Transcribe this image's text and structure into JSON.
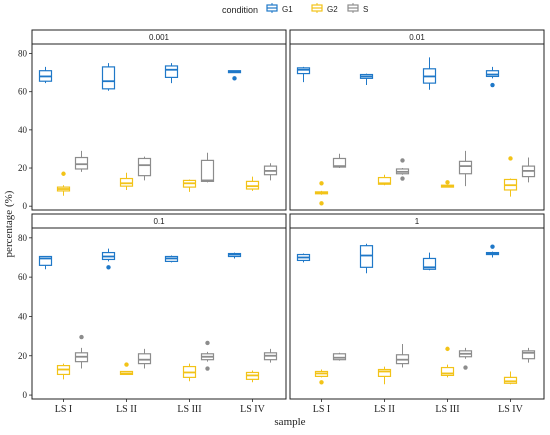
{
  "chart_data": {
    "type": "boxplot",
    "legend": {
      "title": "condition",
      "placement": "top",
      "entries": [
        {
          "label": "G1",
          "color": "#1f78c8"
        },
        {
          "label": "G2",
          "color": "#f2c318"
        },
        {
          "label": "S",
          "color": "#8c8c8c"
        }
      ]
    },
    "xlabel": "sample",
    "ylabel": "percentage (%)",
    "ylim": [
      -2,
      85
    ],
    "yticks": [
      0,
      20,
      40,
      60,
      80
    ],
    "categories": [
      "LS I",
      "LS II",
      "LS III",
      "LS IV"
    ],
    "facets": [
      {
        "label": "0.001",
        "boxes": [
          {
            "sample": "LS I",
            "condition": "G1",
            "q1": 65.5,
            "median": 68,
            "q3": 71,
            "min": 64.5,
            "max": 73,
            "outliers": []
          },
          {
            "sample": "LS I",
            "condition": "G2",
            "q1": 8,
            "median": 9,
            "q3": 10,
            "min": 5.5,
            "max": 11,
            "outliers": [
              17
            ]
          },
          {
            "sample": "LS I",
            "condition": "S",
            "q1": 19.5,
            "median": 22,
            "q3": 25.5,
            "min": 18,
            "max": 29,
            "outliers": []
          },
          {
            "sample": "LS II",
            "condition": "G1",
            "q1": 61.5,
            "median": 65.5,
            "q3": 73,
            "min": 60.5,
            "max": 75,
            "outliers": []
          },
          {
            "sample": "LS II",
            "condition": "G2",
            "q1": 10.5,
            "median": 12,
            "q3": 14.5,
            "min": 8.5,
            "max": 17.5,
            "outliers": []
          },
          {
            "sample": "LS II",
            "condition": "S",
            "q1": 16,
            "median": 21.5,
            "q3": 25,
            "min": 13.5,
            "max": 26,
            "outliers": []
          },
          {
            "sample": "LS III",
            "condition": "G1",
            "q1": 67.5,
            "median": 71.5,
            "q3": 73.5,
            "min": 64.5,
            "max": 75,
            "outliers": []
          },
          {
            "sample": "LS III",
            "condition": "G2",
            "q1": 10,
            "median": 12,
            "q3": 13.5,
            "min": 7.5,
            "max": 14,
            "outliers": []
          },
          {
            "sample": "LS III",
            "condition": "S",
            "q1": 13,
            "median": 13.5,
            "q3": 24,
            "min": 12.5,
            "max": 28,
            "outliers": []
          },
          {
            "sample": "LS IV",
            "condition": "G1",
            "q1": 70,
            "median": 70.5,
            "q3": 71,
            "min": 70,
            "max": 71,
            "outliers": [
              67
            ]
          },
          {
            "sample": "LS IV",
            "condition": "G2",
            "q1": 9,
            "median": 10.5,
            "q3": 13,
            "min": 8,
            "max": 15.5,
            "outliers": []
          },
          {
            "sample": "LS IV",
            "condition": "S",
            "q1": 16.5,
            "median": 18.5,
            "q3": 21,
            "min": 13.5,
            "max": 22.5,
            "outliers": []
          }
        ]
      },
      {
        "label": "0.01",
        "boxes": [
          {
            "sample": "LS I",
            "condition": "G1",
            "q1": 69.5,
            "median": 71.5,
            "q3": 72.5,
            "min": 65,
            "max": 73,
            "outliers": []
          },
          {
            "sample": "LS I",
            "condition": "G2",
            "q1": 6.5,
            "median": 7,
            "q3": 7.5,
            "min": 6,
            "max": 8,
            "outliers": [
              12,
              1.5
            ]
          },
          {
            "sample": "LS I",
            "condition": "S",
            "q1": 20.5,
            "median": 21,
            "q3": 25,
            "min": 20,
            "max": 27.5,
            "outliers": []
          },
          {
            "sample": "LS II",
            "condition": "G1",
            "q1": 67,
            "median": 68,
            "q3": 69,
            "min": 63.5,
            "max": 69.5,
            "outliers": []
          },
          {
            "sample": "LS II",
            "condition": "G2",
            "q1": 11.5,
            "median": 12,
            "q3": 15,
            "min": 11,
            "max": 16.5,
            "outliers": []
          },
          {
            "sample": "LS II",
            "condition": "S",
            "q1": 17,
            "median": 18,
            "q3": 19.5,
            "min": 16.5,
            "max": 20,
            "outliers": [
              24,
              14.5
            ]
          },
          {
            "sample": "LS III",
            "condition": "G1",
            "q1": 64.5,
            "median": 68,
            "q3": 72,
            "min": 61,
            "max": 78,
            "outliers": []
          },
          {
            "sample": "LS III",
            "condition": "G2",
            "q1": 10,
            "median": 10.5,
            "q3": 11,
            "min": 10,
            "max": 11,
            "outliers": [
              12.5
            ]
          },
          {
            "sample": "LS III",
            "condition": "S",
            "q1": 17,
            "median": 21,
            "q3": 23.5,
            "min": 10.5,
            "max": 29,
            "outliers": []
          },
          {
            "sample": "LS IV",
            "condition": "G1",
            "q1": 68,
            "median": 69,
            "q3": 71,
            "min": 67,
            "max": 73,
            "outliers": [
              63.5
            ]
          },
          {
            "sample": "LS IV",
            "condition": "G2",
            "q1": 8.5,
            "median": 11,
            "q3": 14,
            "min": 5,
            "max": 14.5,
            "outliers": [
              25
            ]
          },
          {
            "sample": "LS IV",
            "condition": "S",
            "q1": 15.5,
            "median": 18.5,
            "q3": 21,
            "min": 12.5,
            "max": 25.5,
            "outliers": []
          }
        ]
      },
      {
        "label": "0.1",
        "boxes": [
          {
            "sample": "LS I",
            "condition": "G1",
            "q1": 66,
            "median": 69.5,
            "q3": 70.5,
            "min": 64,
            "max": 70.5,
            "outliers": []
          },
          {
            "sample": "LS I",
            "condition": "G2",
            "q1": 10.5,
            "median": 13,
            "q3": 15,
            "min": 8,
            "max": 16,
            "outliers": []
          },
          {
            "sample": "LS I",
            "condition": "S",
            "q1": 17,
            "median": 19.5,
            "q3": 21.5,
            "min": 13.5,
            "max": 24,
            "outliers": [
              29.5
            ]
          },
          {
            "sample": "LS II",
            "condition": "G1",
            "q1": 69,
            "median": 70.5,
            "q3": 72.5,
            "min": 68,
            "max": 74.5,
            "outliers": [
              65
            ]
          },
          {
            "sample": "LS II",
            "condition": "G2",
            "q1": 10.5,
            "median": 11,
            "q3": 12,
            "min": 10.5,
            "max": 12,
            "outliers": [
              15.5
            ]
          },
          {
            "sample": "LS II",
            "condition": "S",
            "q1": 16,
            "median": 18,
            "q3": 21,
            "min": 13.5,
            "max": 23.5,
            "outliers": []
          },
          {
            "sample": "LS III",
            "condition": "G1",
            "q1": 68,
            "median": 69.5,
            "q3": 70.5,
            "min": 67.5,
            "max": 71,
            "outliers": []
          },
          {
            "sample": "LS III",
            "condition": "G2",
            "q1": 9,
            "median": 11.5,
            "q3": 14.5,
            "min": 7,
            "max": 16,
            "outliers": []
          },
          {
            "sample": "LS III",
            "condition": "S",
            "q1": 18,
            "median": 19.5,
            "q3": 21,
            "min": 17,
            "max": 22,
            "outliers": [
              26.5,
              13.5
            ]
          },
          {
            "sample": "LS IV",
            "condition": "G1",
            "q1": 70.5,
            "median": 71.5,
            "q3": 72,
            "min": 69.5,
            "max": 72.5,
            "outliers": []
          },
          {
            "sample": "LS IV",
            "condition": "G2",
            "q1": 8,
            "median": 10,
            "q3": 11.5,
            "min": 6.5,
            "max": 12.5,
            "outliers": []
          },
          {
            "sample": "LS IV",
            "condition": "S",
            "q1": 18,
            "median": 20,
            "q3": 21.5,
            "min": 16.5,
            "max": 23.5,
            "outliers": []
          }
        ]
      },
      {
        "label": "1",
        "boxes": [
          {
            "sample": "LS I",
            "condition": "G1",
            "q1": 68.5,
            "median": 70,
            "q3": 71.5,
            "min": 67.5,
            "max": 72,
            "outliers": []
          },
          {
            "sample": "LS I",
            "condition": "G2",
            "q1": 9.5,
            "median": 11,
            "q3": 12,
            "min": 9,
            "max": 13,
            "outliers": [
              6.5
            ]
          },
          {
            "sample": "LS I",
            "condition": "S",
            "q1": 18,
            "median": 19,
            "q3": 21,
            "min": 17.5,
            "max": 21.5,
            "outliers": []
          },
          {
            "sample": "LS II",
            "condition": "G1",
            "q1": 65,
            "median": 71,
            "q3": 76,
            "min": 62,
            "max": 77,
            "outliers": []
          },
          {
            "sample": "LS II",
            "condition": "G2",
            "q1": 9.5,
            "median": 12,
            "q3": 13,
            "min": 5.5,
            "max": 14.5,
            "outliers": []
          },
          {
            "sample": "LS II",
            "condition": "S",
            "q1": 16,
            "median": 18,
            "q3": 20.5,
            "min": 14,
            "max": 26,
            "outliers": []
          },
          {
            "sample": "LS III",
            "condition": "G1",
            "q1": 64,
            "median": 65,
            "q3": 69.5,
            "min": 63.5,
            "max": 72.5,
            "outliers": []
          },
          {
            "sample": "LS III",
            "condition": "G2",
            "q1": 10,
            "median": 11,
            "q3": 14,
            "min": 9,
            "max": 15.5,
            "outliers": [
              23.5
            ]
          },
          {
            "sample": "LS III",
            "condition": "S",
            "q1": 19.5,
            "median": 21,
            "q3": 22.5,
            "min": 18.5,
            "max": 24,
            "outliers": [
              14
            ]
          },
          {
            "sample": "LS IV",
            "condition": "G1",
            "q1": 71.5,
            "median": 72,
            "q3": 72.5,
            "min": 70,
            "max": 73,
            "outliers": [
              75.5
            ]
          },
          {
            "sample": "LS IV",
            "condition": "G2",
            "q1": 6,
            "median": 7,
            "q3": 9,
            "min": 5.5,
            "max": 12,
            "outliers": []
          },
          {
            "sample": "LS IV",
            "condition": "S",
            "q1": 18.5,
            "median": 21.5,
            "q3": 22.5,
            "min": 16.5,
            "max": 24,
            "outliers": []
          }
        ]
      }
    ]
  }
}
